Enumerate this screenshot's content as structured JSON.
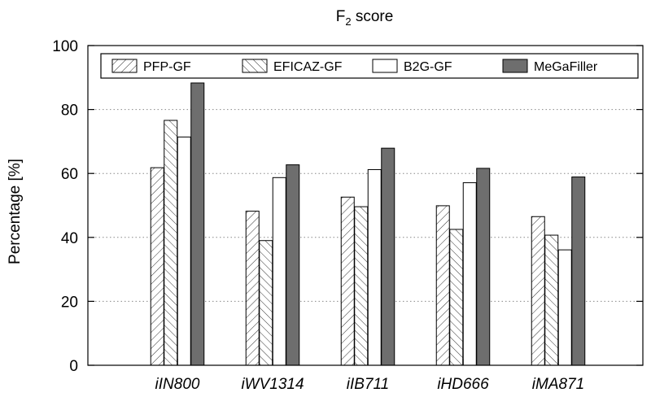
{
  "chart_data": {
    "type": "bar",
    "title": "F",
    "title_subscript": "2",
    "title_suffix": " score",
    "xlabel": "",
    "ylabel": "Percentage [%]",
    "ylim": [
      0,
      100
    ],
    "yticks": [
      0,
      20,
      40,
      60,
      80,
      100
    ],
    "grid": "horizontal dotted",
    "legend_position": "top",
    "categories": [
      "iIN800",
      "iWV1314",
      "iIB711",
      "iHD666",
      "iMA871"
    ],
    "series": [
      {
        "name": "PFP-GF",
        "pattern": "forward-hatch",
        "values": [
          61.8,
          48.2,
          52.6,
          49.9,
          46.5
        ]
      },
      {
        "name": "EFICAZ-GF",
        "pattern": "back-hatch",
        "values": [
          76.6,
          39.0,
          49.6,
          42.5,
          40.7
        ]
      },
      {
        "name": "B2G-GF",
        "pattern": "solid-white",
        "values": [
          71.4,
          58.7,
          61.2,
          57.1,
          36.1
        ]
      },
      {
        "name": "MeGaFiller",
        "pattern": "solid-gray",
        "values": [
          88.3,
          62.7,
          67.9,
          61.6,
          58.9
        ]
      }
    ]
  }
}
